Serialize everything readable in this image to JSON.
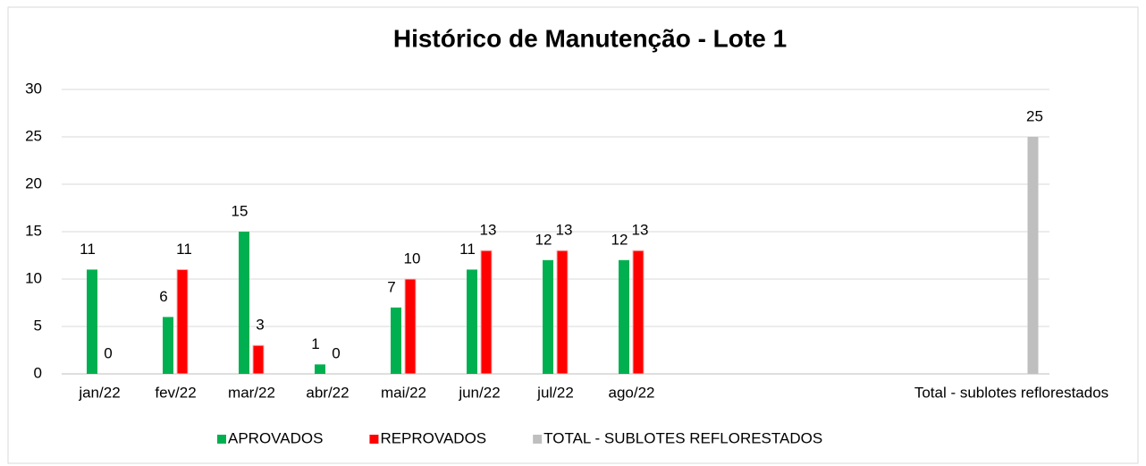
{
  "chart_data": {
    "type": "bar",
    "title": "Histórico de Manutenção - Lote 1",
    "categories": [
      "jan/22",
      "fev/22",
      "mar/22",
      "abr/22",
      "mai/22",
      "jun/22",
      "jul/22",
      "ago/22",
      null,
      null,
      null,
      null,
      "Total - sublotes reflorestados"
    ],
    "series": [
      {
        "name": "APROVADOS",
        "color": "#00b050",
        "values": [
          11,
          6,
          15,
          1,
          7,
          11,
          12,
          12,
          null,
          null,
          null,
          null,
          null
        ]
      },
      {
        "name": "REPROVADOS",
        "color": "#ff0000",
        "values": [
          0,
          11,
          3,
          0,
          10,
          13,
          13,
          13,
          null,
          null,
          null,
          null,
          null
        ]
      },
      {
        "name": "TOTAL - SUBLOTES REFLORESTADOS",
        "color": "#bfbfbf",
        "values": [
          null,
          null,
          null,
          null,
          null,
          null,
          null,
          null,
          null,
          null,
          null,
          null,
          25
        ]
      }
    ],
    "ylim": [
      0,
      30
    ],
    "yticks": [
      0,
      5,
      10,
      15,
      20,
      25,
      30
    ],
    "grid": true,
    "legend": "bottom"
  }
}
